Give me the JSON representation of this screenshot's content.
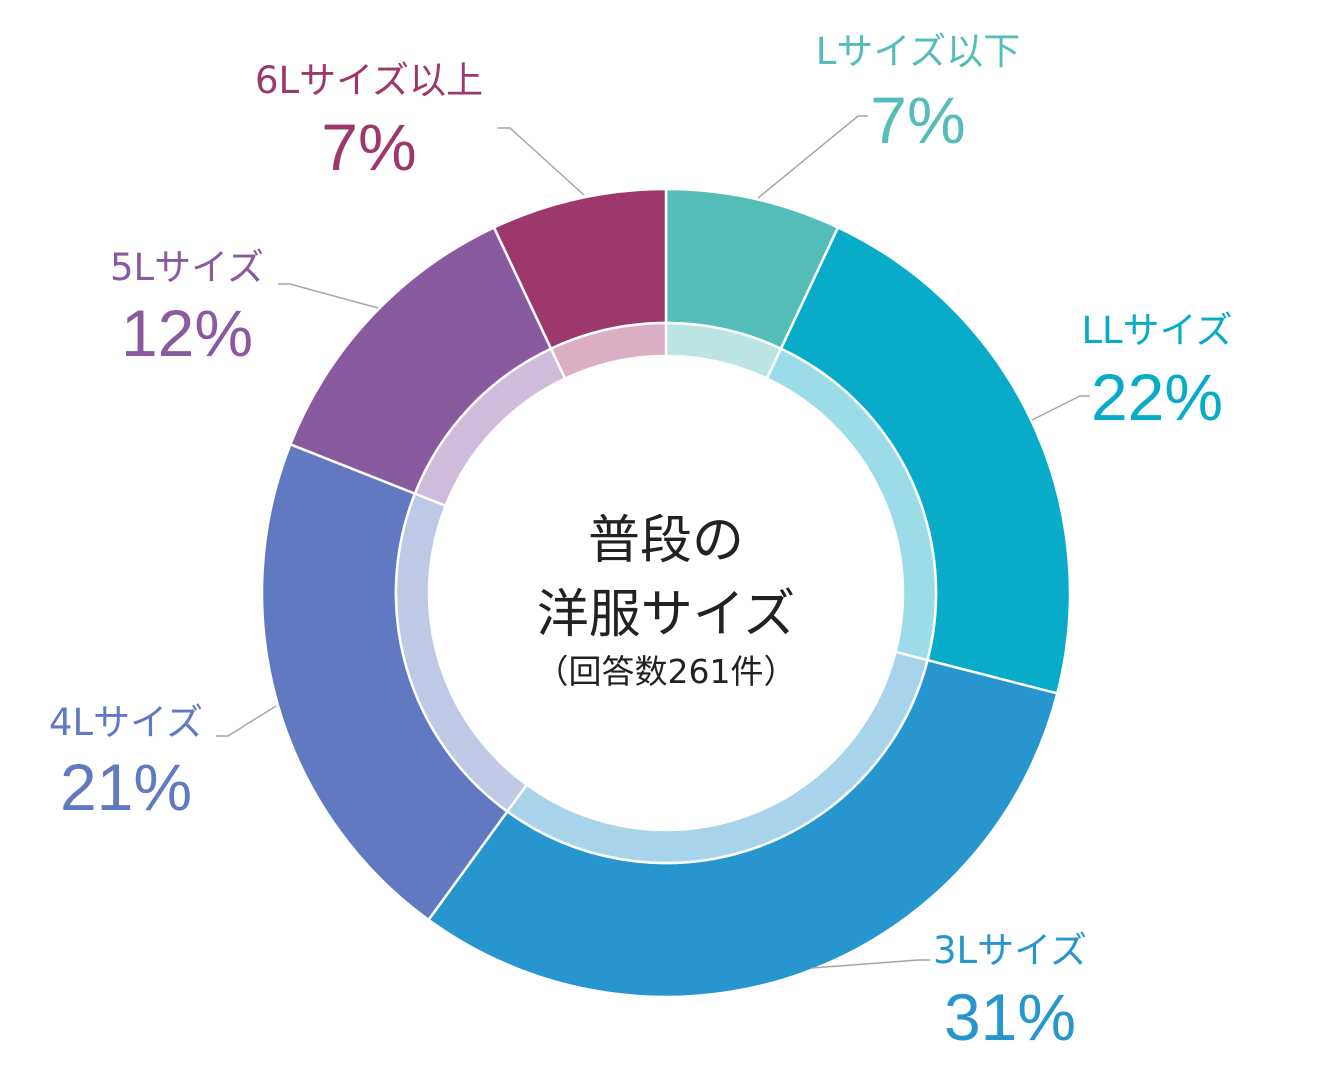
{
  "chart_data": {
    "type": "pie",
    "title": "普段の洋服サイズ",
    "title_lines": [
      "普段の",
      "洋服サイズ"
    ],
    "subtitle": "（回答数261件）",
    "total_responses": 261,
    "labels_are_external": true,
    "slices": [
      {
        "label": "Lサイズ以下",
        "value": 7,
        "value_label": "7%",
        "color": "#55BDB8",
        "inner_color": "#BBE5E3",
        "label_color": "#55BDB8"
      },
      {
        "label": "LLサイズ",
        "value": 22,
        "value_label": "22%",
        "color": "#08ABC8",
        "inner_color": "#9CDCE9",
        "label_color": "#08ABC8"
      },
      {
        "label": "3Lサイズ",
        "value": 31,
        "value_label": "31%",
        "color": "#2796CF",
        "inner_color": "#A8D4EB",
        "label_color": "#2796CF"
      },
      {
        "label": "4Lサイズ",
        "value": 21,
        "value_label": "21%",
        "color": "#6179C0",
        "inner_color": "#BFC9E6",
        "label_color": "#6179C0"
      },
      {
        "label": "5Lサイズ",
        "value": 12,
        "value_label": "12%",
        "color": "#8A5AA1",
        "inner_color": "#CFBCDB",
        "label_color": "#8A5AA1"
      },
      {
        "label": "6Lサイズ以上",
        "value": 7,
        "value_label": "7%",
        "color": "#9C386B",
        "inner_color": "#DBAEC4",
        "label_color": "#9C386B"
      }
    ]
  }
}
